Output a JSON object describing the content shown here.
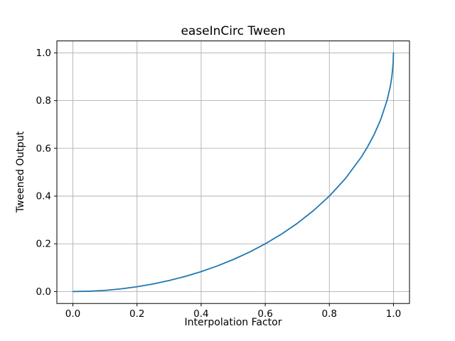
{
  "figure": {
    "background": "#ffffff"
  },
  "chart_data": {
    "type": "line",
    "title": "easeInCirc Tween",
    "xlabel": "Interpolation Factor",
    "ylabel": "Tweened Output",
    "xlim": [
      -0.05,
      1.05
    ],
    "ylim": [
      -0.05,
      1.05
    ],
    "x_ticks": [
      0.0,
      0.2,
      0.4,
      0.6,
      0.8,
      1.0
    ],
    "y_ticks": [
      0.0,
      0.2,
      0.4,
      0.6,
      0.8,
      1.0
    ],
    "tick_label_format_decimals": 1,
    "grid": true,
    "legend": "none",
    "colors": {
      "line": "#1f77b4",
      "grid": "#b0b0b0",
      "spine": "#000000",
      "text": "#000000",
      "background": "#ffffff"
    },
    "series": [
      {
        "name": "easeInCirc",
        "x": [
          0,
          0.05,
          0.1,
          0.15,
          0.2,
          0.25,
          0.3,
          0.35,
          0.4,
          0.45,
          0.5,
          0.55,
          0.6,
          0.65,
          0.7,
          0.75,
          0.8,
          0.85,
          0.9,
          0.92,
          0.94,
          0.96,
          0.98,
          0.99,
          0.995,
          0.999,
          1
        ],
        "y": [
          0,
          0.0013,
          0.005,
          0.0113,
          0.0202,
          0.0318,
          0.0461,
          0.0633,
          0.0835,
          0.107,
          0.134,
          0.1648,
          0.2,
          0.2401,
          0.2859,
          0.3386,
          0.4,
          0.4732,
          0.5641,
          0.6081,
          0.6588,
          0.72,
          0.801,
          0.8589,
          0.9001,
          0.9553,
          1
        ]
      }
    ]
  }
}
